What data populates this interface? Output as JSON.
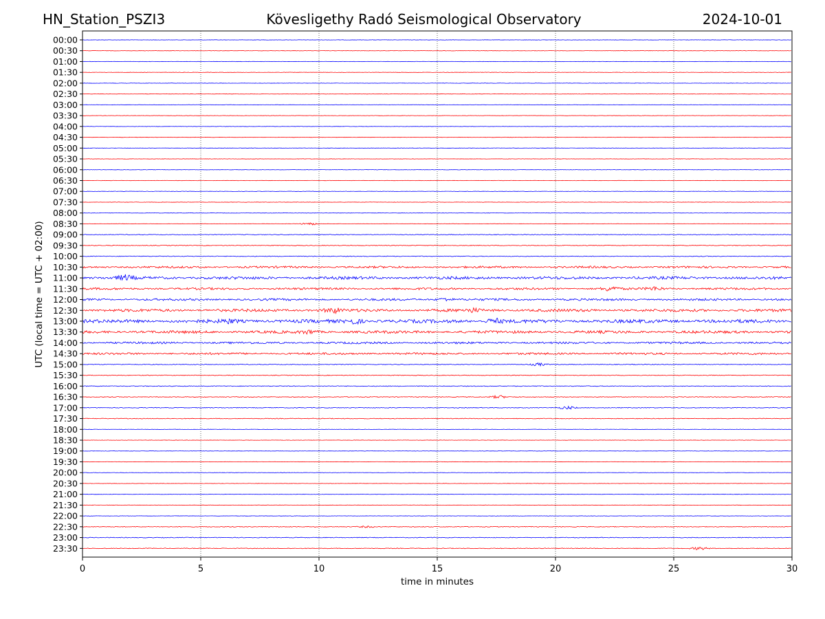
{
  "header": {
    "station": "HN_Station_PSZI3",
    "title": "Kövesligethy Radó Seismological Observatory",
    "date": "2024-10-01"
  },
  "chart_data": {
    "type": "line",
    "xlabel": "time in minutes",
    "ylabel": "UTC (local time = UTC + 02:00)",
    "xlim": [
      0,
      30
    ],
    "x_ticks": [
      0,
      5,
      10,
      15,
      20,
      25,
      30
    ],
    "x_tick_labels": [
      "0",
      "5",
      "10",
      "15",
      "20",
      "25",
      "30"
    ],
    "grid": "vertical dotted at x ticks",
    "rows": [
      "00:00",
      "00:30",
      "01:00",
      "01:30",
      "02:00",
      "02:30",
      "03:00",
      "03:30",
      "04:00",
      "04:30",
      "05:00",
      "05:30",
      "06:00",
      "06:30",
      "07:00",
      "07:30",
      "08:00",
      "08:30",
      "09:00",
      "09:30",
      "10:00",
      "10:30",
      "11:00",
      "11:30",
      "12:00",
      "12:30",
      "13:00",
      "13:30",
      "14:00",
      "14:30",
      "15:00",
      "15:30",
      "16:00",
      "16:30",
      "17:00",
      "17:30",
      "18:00",
      "18:30",
      "19:00",
      "19:30",
      "20:00",
      "20:30",
      "21:00",
      "21:30",
      "22:00",
      "22:30",
      "23:00",
      "23:30"
    ],
    "trace_colors": [
      "#0000ff",
      "#ff0000"
    ],
    "trace_color_cycle": "blue, red, alternating by row",
    "activity": [
      1,
      1,
      1,
      1,
      1,
      1,
      1,
      1,
      1,
      1,
      1,
      1,
      1,
      1,
      1,
      1,
      1,
      1,
      2,
      2,
      2,
      3,
      4,
      3,
      3,
      4,
      5,
      4,
      3,
      3,
      2,
      2,
      2,
      2,
      2,
      2,
      1,
      1,
      1,
      1,
      1,
      1,
      1,
      1,
      1,
      2,
      2,
      2
    ],
    "events": [
      {
        "row": "08:30",
        "minute": 9.6,
        "strength": 2
      },
      {
        "row": "11:00",
        "minute": 1.8,
        "strength": 3
      },
      {
        "row": "11:30",
        "minute": 22.3,
        "strength": 3
      },
      {
        "row": "11:30",
        "minute": 24.2,
        "strength": 2
      },
      {
        "row": "12:00",
        "minute": 15.3,
        "strength": 2
      },
      {
        "row": "12:30",
        "minute": 10.6,
        "strength": 3
      },
      {
        "row": "12:30",
        "minute": 16.5,
        "strength": 2
      },
      {
        "row": "13:00",
        "minute": 6.2,
        "strength": 2
      },
      {
        "row": "13:00",
        "minute": 11.5,
        "strength": 3
      },
      {
        "row": "13:00",
        "minute": 17.4,
        "strength": 3
      },
      {
        "row": "13:30",
        "minute": 9.6,
        "strength": 2
      },
      {
        "row": "15:00",
        "minute": 19.3,
        "strength": 2
      },
      {
        "row": "16:30",
        "minute": 17.6,
        "strength": 2
      },
      {
        "row": "17:00",
        "minute": 20.5,
        "strength": 2
      },
      {
        "row": "22:30",
        "minute": 12.0,
        "strength": 1
      },
      {
        "row": "23:30",
        "minute": 26.1,
        "strength": 2
      }
    ]
  }
}
